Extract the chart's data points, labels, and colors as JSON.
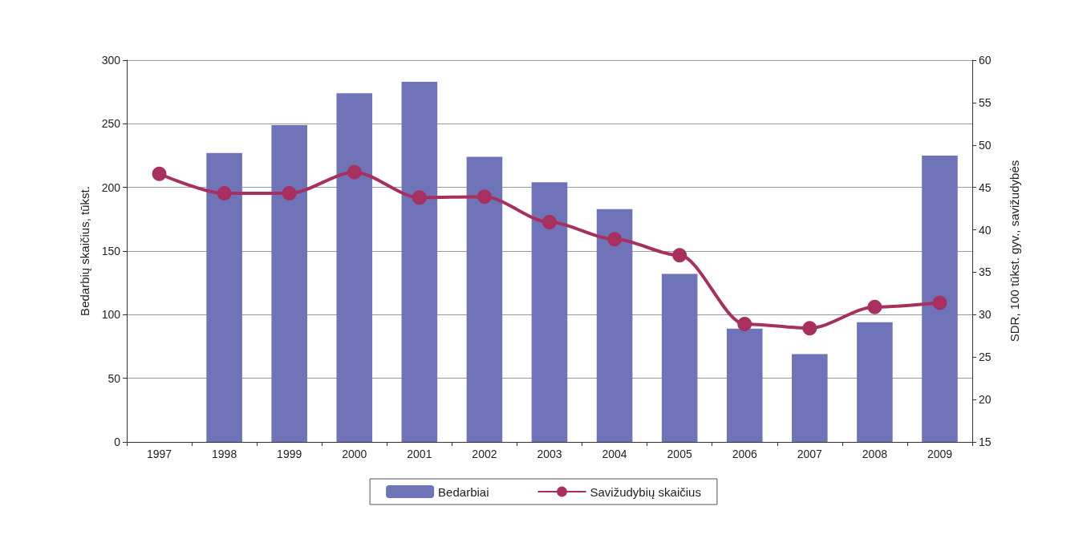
{
  "chart_data": {
    "type": "bar",
    "categories": [
      "1997",
      "1998",
      "1999",
      "2000",
      "2001",
      "2002",
      "2003",
      "2004",
      "2005",
      "2006",
      "2007",
      "2008",
      "2009"
    ],
    "series": [
      {
        "name": "Bedarbiai",
        "color": "#6f74b8",
        "values": [
          null,
          227,
          249,
          274,
          283,
          224,
          204,
          183,
          132,
          89,
          69,
          94,
          225
        ]
      },
      {
        "name": "Savižudybių skaičius",
        "type": "line",
        "axis": "y2",
        "color": "#a8305e",
        "marker": "circle",
        "values": [
          46.6,
          44.3,
          44.3,
          46.8,
          43.8,
          43.9,
          40.9,
          38.9,
          37.0,
          28.9,
          28.4,
          30.9,
          31.4
        ]
      }
    ],
    "ylabel": "Bedarbių skaičius, tūkst.",
    "y2label": "SDR, 100 tūkst. gyv., savižudybės",
    "ylim": [
      0,
      300
    ],
    "yticks": [
      0,
      50,
      100,
      150,
      200,
      250,
      300
    ],
    "y2lim": [
      15,
      60
    ],
    "y2ticks": [
      15,
      20,
      25,
      30,
      35,
      40,
      45,
      50,
      55,
      60
    ],
    "grid": "y",
    "legend": "bottom"
  }
}
